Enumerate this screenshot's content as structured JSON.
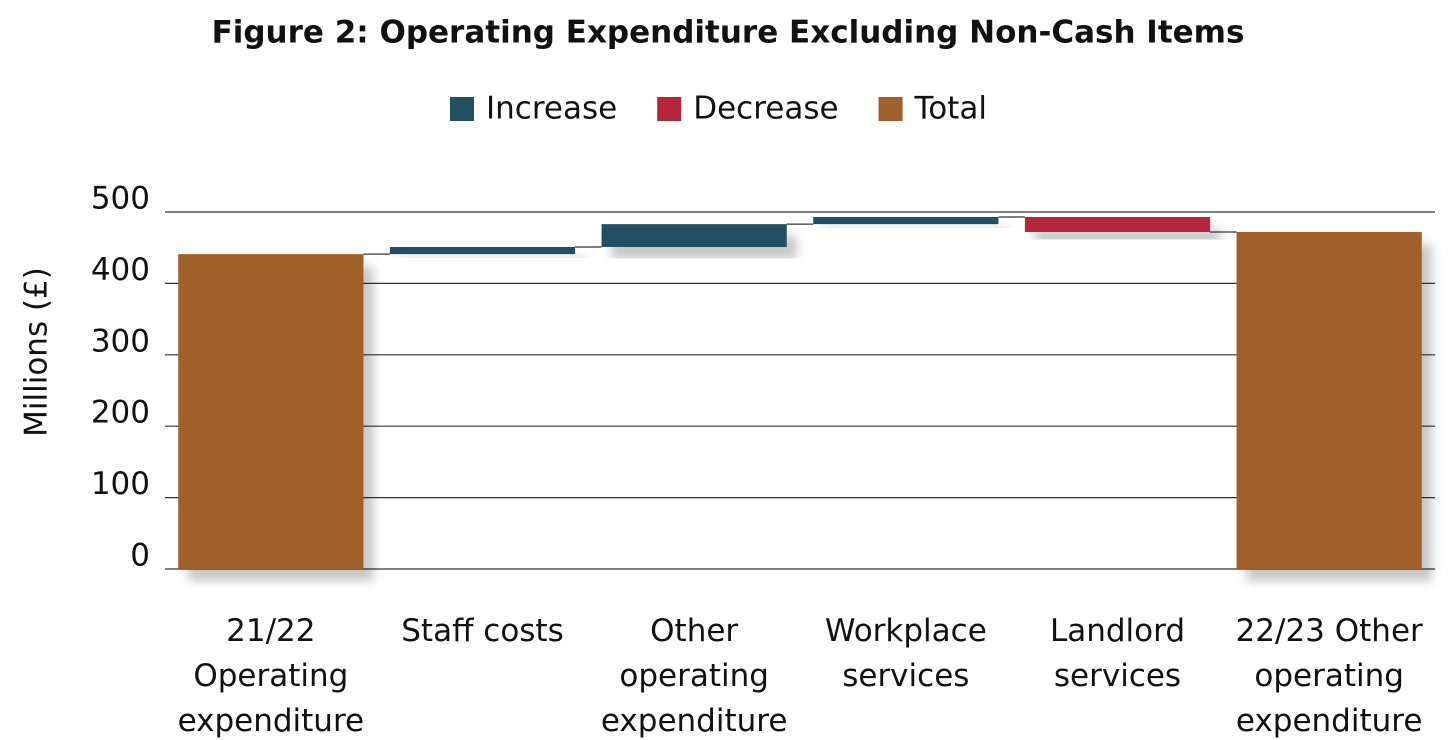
{
  "chart_data": {
    "type": "waterfall",
    "title": "Figure 2: Operating Expenditure Excluding Non-Cash Items",
    "y_label": "Millions (£)",
    "categories": [
      "21/22 Operating expenditure",
      "Staff costs",
      "Other operating expenditure",
      "Workplace services",
      "Landlord services",
      "22/23 Other operating expenditure"
    ],
    "series": [
      {
        "name": "Increase",
        "color": "#234f63",
        "measure": "relative",
        "values": [
          null,
          10,
          32,
          10,
          null,
          null
        ]
      },
      {
        "name": "Decrease",
        "color": "#b5253a",
        "measure": "relative",
        "values": [
          null,
          null,
          null,
          null,
          -21,
          null
        ]
      },
      {
        "name": "Total",
        "color": "#a0602a",
        "measure": "total",
        "values": [
          441,
          null,
          null,
          null,
          null,
          472
        ]
      }
    ],
    "ylim": [
      0,
      500
    ],
    "yticks": [
      0,
      100,
      200,
      300,
      400,
      500
    ],
    "grid": true
  }
}
